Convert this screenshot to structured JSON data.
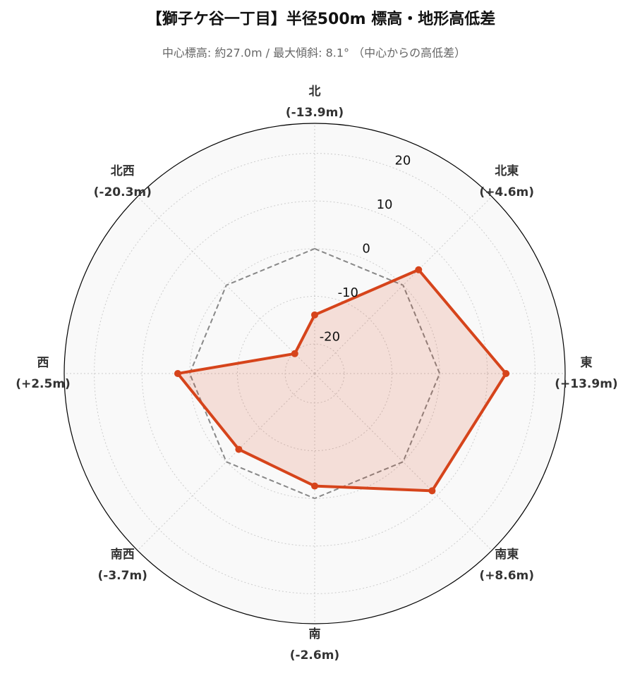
{
  "chart_data": {
    "type": "radar",
    "title": "【獅子ケ谷一丁目】半径500m 標高・地形高低差",
    "subtitle": "中心標高: 約27.0m / 最大傾斜: 8.1° （中心からの高低差）",
    "categories": [
      "北",
      "北東",
      "東",
      "南東",
      "南",
      "南西",
      "西",
      "北西"
    ],
    "series": [
      {
        "color": "#d6441b",
        "values": [
          -13.9,
          4.6,
          13.9,
          8.6,
          -2.6,
          -3.7,
          2.5,
          -20.3
        ],
        "value_labels": [
          "(-13.9m)",
          "(+4.6m)",
          "(+13.9m)",
          "(+8.6m)",
          "(-2.6m)",
          "(-3.7m)",
          "(+2.5m)",
          "(-20.3m)"
        ]
      }
    ],
    "ylim": [
      -26.2,
      26.3
    ],
    "yticks": [
      -20,
      -10,
      0,
      10,
      20
    ],
    "grid": true
  }
}
